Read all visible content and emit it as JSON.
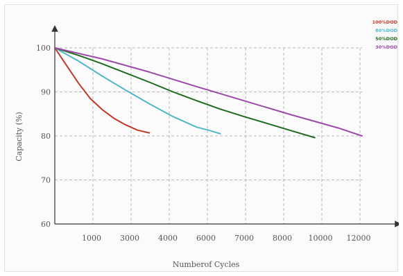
{
  "chart_data": {
    "type": "line",
    "title": "",
    "xlabel": "Numberof Cycles",
    "ylabel": "Capacity (%)",
    "ylim": [
      60,
      100
    ],
    "y_ticks": [
      "60",
      "70",
      "80",
      "90",
      "100"
    ],
    "x_ticks": [
      "1000",
      "3000",
      "4000",
      "6000",
      "7000",
      "8000",
      "10000",
      "12000"
    ],
    "grid": true,
    "legend_position": "top-right",
    "series": [
      {
        "name": "100%DOD",
        "color": "#c0392b",
        "points": [
          [
            0,
            100
          ],
          [
            500,
            96
          ],
          [
            1000,
            92
          ],
          [
            1500,
            88.5
          ],
          [
            2000,
            86
          ],
          [
            2500,
            84
          ],
          [
            3000,
            82.5
          ],
          [
            3500,
            81.3
          ],
          [
            4000,
            80.7
          ]
        ]
      },
      {
        "name": "80%DOD",
        "color": "#4fb8c7",
        "points": [
          [
            0,
            100
          ],
          [
            1000,
            97
          ],
          [
            2000,
            93.6
          ],
          [
            3000,
            90.4
          ],
          [
            4000,
            87.3
          ],
          [
            5000,
            84.4
          ],
          [
            6000,
            82
          ],
          [
            6500,
            81.3
          ],
          [
            7000,
            80.5
          ]
        ]
      },
      {
        "name": "50%DOD",
        "color": "#1e6b1e",
        "points": [
          [
            0,
            100
          ],
          [
            1000,
            98.3
          ],
          [
            2000,
            96.4
          ],
          [
            3000,
            94.3
          ],
          [
            4000,
            92.2
          ],
          [
            5000,
            90
          ],
          [
            6000,
            88
          ],
          [
            7000,
            86.1
          ],
          [
            8000,
            84.4
          ],
          [
            9000,
            82.8
          ],
          [
            10000,
            81.2
          ],
          [
            11000,
            79.6
          ]
        ]
      },
      {
        "name": "30%DOD",
        "color": "#9b4aa8",
        "points": [
          [
            0,
            100
          ],
          [
            2000,
            97.5
          ],
          [
            4000,
            94.5
          ],
          [
            6000,
            91.2
          ],
          [
            8000,
            88
          ],
          [
            10000,
            84.8
          ],
          [
            12000,
            81.8
          ],
          [
            13000,
            80
          ]
        ]
      }
    ]
  }
}
